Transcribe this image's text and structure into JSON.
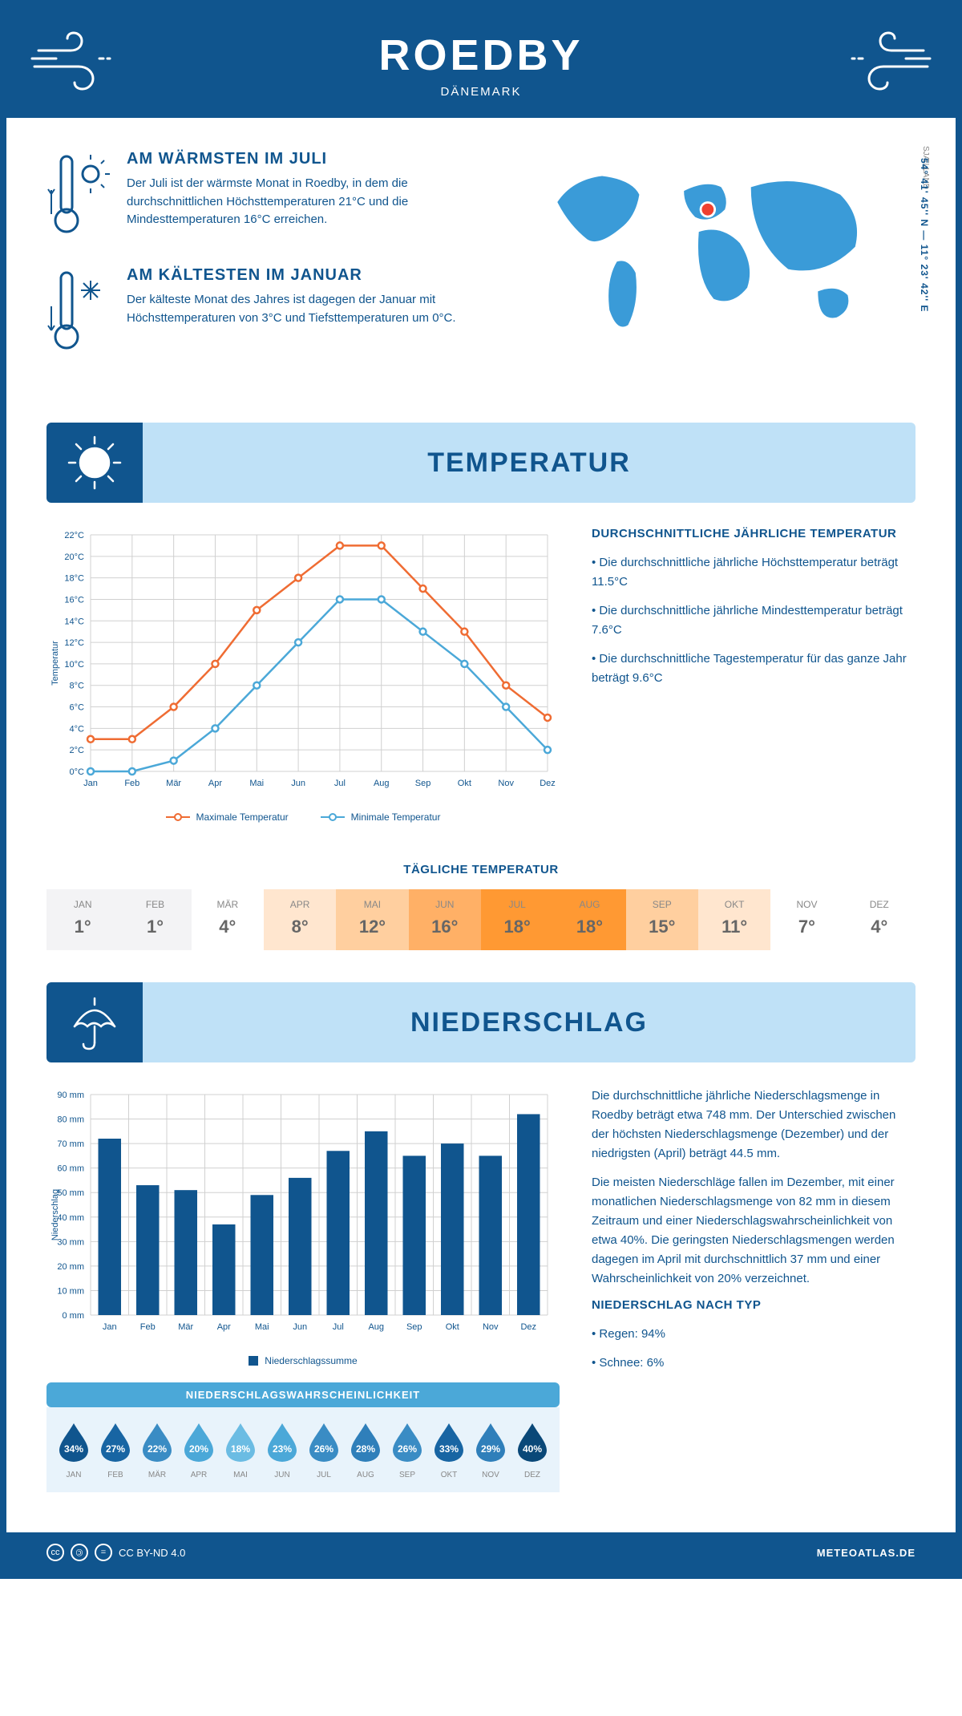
{
  "header": {
    "city": "ROEDBY",
    "country": "DÄNEMARK"
  },
  "colors": {
    "primary": "#10558e",
    "lightblue": "#bfe1f7",
    "midblue": "#4ba8d8",
    "orange": "#ef6c33",
    "line_hi": "#ef6c33",
    "line_lo": "#4ba8d8",
    "grid": "#d0d0d0",
    "faint": "#e8f3fb",
    "grey": "#888"
  },
  "coords_text": "54° 41' 45'' N — 11° 23' 42'' E",
  "region_text": "SJÆLLAND",
  "warm": {
    "title": "AM WÄRMSTEN IM JULI",
    "text": "Der Juli ist der wärmste Monat in Roedby, in dem die durchschnittlichen Höchsttemperaturen 21°C und die Mindesttemperaturen 16°C erreichen."
  },
  "cold": {
    "title": "AM KÄLTESTEN IM JANUAR",
    "text": "Der kälteste Monat des Jahres ist dagegen der Januar mit Höchsttemperaturen von 3°C und Tiefsttemperaturen um 0°C."
  },
  "section_temp_title": "TEMPERATUR",
  "section_precip_title": "NIEDERSCHLAG",
  "months": [
    "Jan",
    "Feb",
    "Mär",
    "Apr",
    "Mai",
    "Jun",
    "Jul",
    "Aug",
    "Sep",
    "Okt",
    "Nov",
    "Dez"
  ],
  "months_upper": [
    "JAN",
    "FEB",
    "MÄR",
    "APR",
    "MAI",
    "JUN",
    "JUL",
    "AUG",
    "SEP",
    "OKT",
    "NOV",
    "DEZ"
  ],
  "temp_chart": {
    "y_label": "Temperatur",
    "y_min": 0,
    "y_max": 22,
    "y_step": 2,
    "y_suffix": "°C",
    "hi": [
      3,
      3,
      6,
      10,
      15,
      18,
      21,
      21,
      17,
      13,
      8,
      5
    ],
    "lo": [
      0,
      0,
      1,
      4,
      8,
      12,
      16,
      16,
      13,
      10,
      6,
      2
    ],
    "legend": {
      "hi": "Maximale Temperatur",
      "lo": "Minimale Temperatur"
    }
  },
  "temp_text": {
    "title": "DURCHSCHNITTLICHE JÄHRLICHE TEMPERATUR",
    "lines": [
      "Die durchschnittliche jährliche Höchsttemperatur beträgt 11.5°C",
      "Die durchschnittliche jährliche Mindesttemperatur beträgt 7.6°C",
      "Die durchschnittliche Tagestemperatur für das ganze Jahr beträgt 9.6°C"
    ]
  },
  "daily_temp": {
    "title": "TÄGLICHE TEMPERATUR",
    "values": [
      "1°",
      "1°",
      "4°",
      "8°",
      "12°",
      "16°",
      "18°",
      "18°",
      "15°",
      "11°",
      "7°",
      "4°"
    ],
    "bg_colors": [
      "#f3f3f5",
      "#f3f3f5",
      "#ffffff",
      "#ffe6cf",
      "#ffcf9f",
      "#ffb066",
      "#ff9933",
      "#ff9933",
      "#ffcf9f",
      "#ffe6cf",
      "#ffffff",
      "#ffffff"
    ]
  },
  "precip_chart": {
    "y_label": "Niederschlag",
    "y_min": 0,
    "y_max": 90,
    "y_step": 10,
    "y_suffix": " mm",
    "values": [
      72,
      53,
      51,
      37,
      49,
      56,
      67,
      75,
      65,
      70,
      65,
      82
    ],
    "legend": "Niederschlagssumme",
    "bar_color": "#10558e"
  },
  "precip_text": {
    "para1": "Die durchschnittliche jährliche Niederschlagsmenge in Roedby beträgt etwa 748 mm. Der Unterschied zwischen der höchsten Niederschlagsmenge (Dezember) und der niedrigsten (April) beträgt 44.5 mm.",
    "para2": "Die meisten Niederschläge fallen im Dezember, mit einer monatlichen Niederschlagsmenge von 82 mm in diesem Zeitraum und einer Niederschlagswahrscheinlichkeit von etwa 40%. Die geringsten Niederschlagsmengen werden dagegen im April mit durchschnittlich 37 mm und einer Wahrscheinlichkeit von 20% verzeichnet.",
    "by_type_title": "NIEDERSCHLAG NACH TYP",
    "by_type": [
      "Regen: 94%",
      "Schnee: 6%"
    ]
  },
  "precip_prob": {
    "title": "NIEDERSCHLAGSWAHRSCHEINLICHKEIT",
    "values": [
      "34%",
      "27%",
      "22%",
      "20%",
      "18%",
      "23%",
      "26%",
      "28%",
      "26%",
      "33%",
      "29%",
      "40%"
    ],
    "drop_colors": [
      "#10558e",
      "#1865a3",
      "#3a8cc4",
      "#4ba8d8",
      "#6bbce3",
      "#4ba8d8",
      "#3a8cc4",
      "#2f7fba",
      "#3a8cc4",
      "#1865a3",
      "#2f7fba",
      "#0a4878"
    ]
  },
  "footer": {
    "license": "CC BY-ND 4.0",
    "brand": "METEOATLAS.DE"
  }
}
